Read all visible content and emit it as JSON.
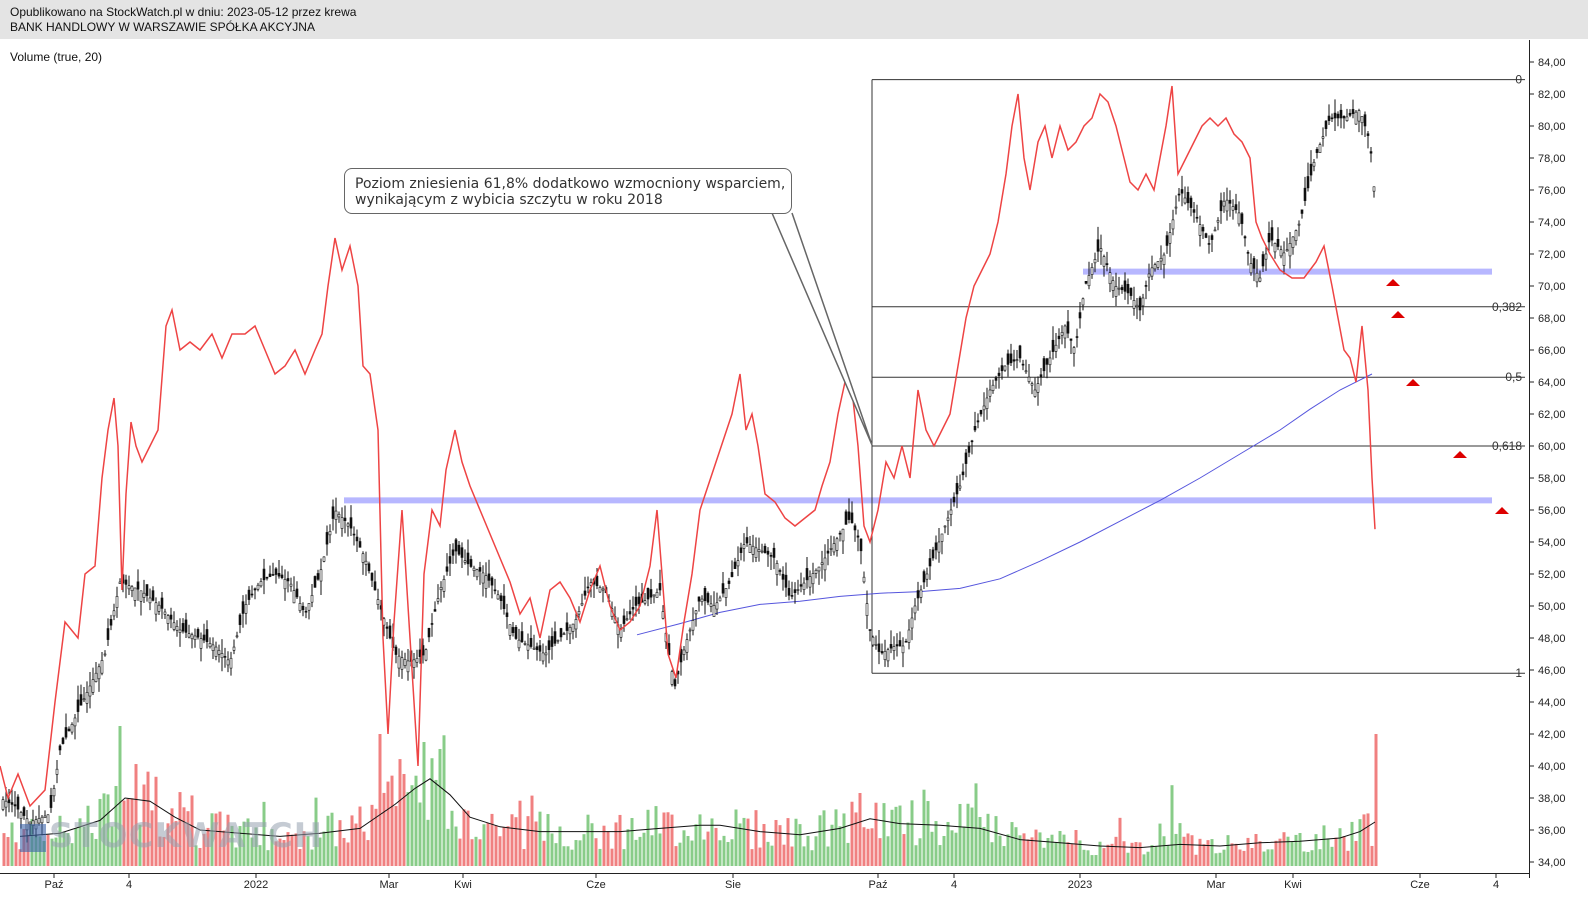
{
  "header": {
    "published": "Opublikowano na StockWatch.pl w dniu: 2023-05-12 przez krewa",
    "company": "BANK HANDLOWY W WARSZAWIE SPÓŁKA AKCYJNA"
  },
  "indicator_label": "Volume (true, 20)",
  "annotation": {
    "line1": "Poziom zniesienia 61,8% dodatkowo wzmocniony wsparciem,",
    "line2": "wynikającym z wybicia szczytu w roku 2018"
  },
  "watermark": "STOCKWATCH",
  "colors": {
    "candles": "#111111",
    "red_line": "#ee4444",
    "ma_line": "#5555dd",
    "support": "#aaaaff",
    "vol_up": "#88cc88",
    "vol_down": "#f08080",
    "arrows": "#dd0000"
  },
  "chart_data": {
    "type": "candlestick",
    "y_axis": {
      "min": 34,
      "max": 84,
      "ticks": [
        "84,00",
        "82,00",
        "80,00",
        "78,00",
        "76,00",
        "74,00",
        "72,00",
        "70,00",
        "68,00",
        "66,00",
        "64,00",
        "62,00",
        "60,00",
        "58,00",
        "56,00",
        "54,00",
        "52,00",
        "50,00",
        "48,00",
        "46,00",
        "44,00",
        "42,00",
        "40,00",
        "38,00",
        "36,00",
        "34,00"
      ]
    },
    "x_axis": {
      "labels": [
        "Paź",
        "4",
        "2022",
        "Mar",
        "Kwi",
        "Cze",
        "Sie",
        "Paź",
        "4",
        "2023",
        "Mar",
        "Kwi",
        "Cze",
        "4"
      ]
    },
    "fibonacci": {
      "high": 82.9,
      "low": 45.8,
      "levels": [
        {
          "label": "0",
          "value": 82.9
        },
        {
          "label": "0,382",
          "value": 68.7
        },
        {
          "label": "0,5",
          "value": 64.3
        },
        {
          "label": "0,618",
          "value": 60.0
        },
        {
          "label": "1",
          "value": 45.8
        }
      ]
    },
    "support_lines": [
      56.6,
      70.9
    ],
    "close_price": [
      [
        0,
        38.0
      ],
      [
        15,
        37.5
      ],
      [
        30,
        36.5
      ],
      [
        50,
        37.0
      ],
      [
        60,
        41.0
      ],
      [
        75,
        43.0
      ],
      [
        90,
        45.0
      ],
      [
        105,
        47.0
      ],
      [
        120,
        51.5
      ],
      [
        140,
        51.0
      ],
      [
        160,
        50.0
      ],
      [
        180,
        48.5
      ],
      [
        200,
        48.0
      ],
      [
        215,
        47.5
      ],
      [
        230,
        46.5
      ],
      [
        245,
        50.0
      ],
      [
        260,
        51.5
      ],
      [
        275,
        52.0
      ],
      [
        290,
        51.5
      ],
      [
        305,
        49.5
      ],
      [
        320,
        52.0
      ],
      [
        335,
        56.0
      ],
      [
        350,
        55.0
      ],
      [
        365,
        53.0
      ],
      [
        380,
        50.0
      ],
      [
        395,
        47.0
      ],
      [
        410,
        46.5
      ],
      [
        425,
        47.0
      ],
      [
        440,
        51.0
      ],
      [
        455,
        53.5
      ],
      [
        470,
        52.5
      ],
      [
        485,
        52.0
      ],
      [
        500,
        50.5
      ],
      [
        515,
        48.0
      ],
      [
        530,
        47.5
      ],
      [
        545,
        47.0
      ],
      [
        560,
        48.0
      ],
      [
        575,
        49.0
      ],
      [
        590,
        51.5
      ],
      [
        605,
        51.0
      ],
      [
        620,
        48.5
      ],
      [
        635,
        50.0
      ],
      [
        650,
        50.5
      ],
      [
        660,
        51.0
      ],
      [
        670,
        46.5
      ],
      [
        675,
        45.0
      ],
      [
        685,
        47.5
      ],
      [
        700,
        50.5
      ],
      [
        715,
        50.0
      ],
      [
        730,
        51.5
      ],
      [
        745,
        54.0
      ],
      [
        760,
        53.5
      ],
      [
        775,
        53.0
      ],
      [
        790,
        50.5
      ],
      [
        805,
        51.5
      ],
      [
        820,
        52.5
      ],
      [
        835,
        54.0
      ],
      [
        850,
        55.5
      ],
      [
        860,
        54.0
      ],
      [
        870,
        48.5
      ],
      [
        880,
        47.0
      ],
      [
        895,
        47.5
      ],
      [
        905,
        47.5
      ],
      [
        915,
        50.0
      ],
      [
        930,
        52.5
      ],
      [
        945,
        55.0
      ],
      [
        960,
        57.5
      ],
      [
        975,
        61.0
      ],
      [
        990,
        63.5
      ],
      [
        1005,
        65.0
      ],
      [
        1020,
        65.5
      ],
      [
        1035,
        63.5
      ],
      [
        1050,
        65.5
      ],
      [
        1065,
        67.5
      ],
      [
        1075,
        66.0
      ],
      [
        1085,
        70.0
      ],
      [
        1100,
        72.5
      ],
      [
        1115,
        70.0
      ],
      [
        1130,
        69.5
      ],
      [
        1140,
        68.5
      ],
      [
        1150,
        71.0
      ],
      [
        1165,
        72.0
      ],
      [
        1180,
        76.0
      ],
      [
        1195,
        74.5
      ],
      [
        1210,
        72.5
      ],
      [
        1225,
        75.5
      ],
      [
        1240,
        74.5
      ],
      [
        1250,
        71.5
      ],
      [
        1260,
        70.5
      ],
      [
        1270,
        73.0
      ],
      [
        1285,
        72.0
      ],
      [
        1300,
        74.0
      ],
      [
        1315,
        78.0
      ],
      [
        1330,
        80.5
      ],
      [
        1345,
        80.5
      ],
      [
        1360,
        81.0
      ],
      [
        1370,
        79.0
      ],
      [
        1375,
        75.5
      ]
    ],
    "moving_average": [
      [
        637,
        48.2
      ],
      [
        680,
        48.9
      ],
      [
        720,
        49.6
      ],
      [
        760,
        50.1
      ],
      [
        800,
        50.3
      ],
      [
        840,
        50.6
      ],
      [
        880,
        50.8
      ],
      [
        920,
        50.9
      ],
      [
        960,
        51.1
      ],
      [
        1000,
        51.7
      ],
      [
        1040,
        52.8
      ],
      [
        1080,
        54.0
      ],
      [
        1120,
        55.3
      ],
      [
        1160,
        56.6
      ],
      [
        1200,
        58.0
      ],
      [
        1240,
        59.5
      ],
      [
        1280,
        61.0
      ],
      [
        1310,
        62.3
      ],
      [
        1340,
        63.5
      ],
      [
        1372,
        64.5
      ]
    ],
    "red_indicator": [
      [
        0,
        40.0
      ],
      [
        8,
        38.0
      ],
      [
        18,
        39.5
      ],
      [
        30,
        37.5
      ],
      [
        45,
        38.5
      ],
      [
        55,
        44.0
      ],
      [
        65,
        49.0
      ],
      [
        78,
        48.0
      ],
      [
        85,
        52.0
      ],
      [
        95,
        52.5
      ],
      [
        102,
        58.0
      ],
      [
        108,
        61.0
      ],
      [
        114,
        63.0
      ],
      [
        118,
        60.0
      ],
      [
        122,
        51.0
      ],
      [
        126,
        57.0
      ],
      [
        131,
        61.5
      ],
      [
        136,
        60.0
      ],
      [
        142,
        59.0
      ],
      [
        150,
        60.0
      ],
      [
        158,
        61.0
      ],
      [
        166,
        67.5
      ],
      [
        172,
        68.5
      ],
      [
        180,
        66.0
      ],
      [
        190,
        66.5
      ],
      [
        200,
        66.0
      ],
      [
        212,
        67.0
      ],
      [
        222,
        65.5
      ],
      [
        232,
        67.0
      ],
      [
        245,
        67.0
      ],
      [
        255,
        67.5
      ],
      [
        265,
        66.0
      ],
      [
        275,
        64.5
      ],
      [
        285,
        65.0
      ],
      [
        295,
        66.0
      ],
      [
        305,
        64.5
      ],
      [
        315,
        66.0
      ],
      [
        322,
        67.0
      ],
      [
        328,
        70.0
      ],
      [
        335,
        73.0
      ],
      [
        342,
        71.0
      ],
      [
        350,
        72.5
      ],
      [
        358,
        70.0
      ],
      [
        363,
        65.0
      ],
      [
        370,
        64.5
      ],
      [
        378,
        61.0
      ],
      [
        383,
        48.0
      ],
      [
        388,
        42.0
      ],
      [
        394,
        49.0
      ],
      [
        402,
        56.0
      ],
      [
        410,
        48.0
      ],
      [
        418,
        40.0
      ],
      [
        424,
        52.0
      ],
      [
        432,
        56.0
      ],
      [
        440,
        55.0
      ],
      [
        446,
        58.5
      ],
      [
        455,
        61.0
      ],
      [
        462,
        59.0
      ],
      [
        470,
        57.5
      ],
      [
        480,
        56.0
      ],
      [
        490,
        54.5
      ],
      [
        500,
        53.0
      ],
      [
        510,
        51.5
      ],
      [
        520,
        49.5
      ],
      [
        530,
        50.5
      ],
      [
        540,
        48.0
      ],
      [
        550,
        51.0
      ],
      [
        560,
        51.5
      ],
      [
        570,
        50.5
      ],
      [
        580,
        49.0
      ],
      [
        590,
        51.0
      ],
      [
        600,
        52.5
      ],
      [
        610,
        50.0
      ],
      [
        620,
        48.5
      ],
      [
        630,
        49.0
      ],
      [
        640,
        50.0
      ],
      [
        650,
        52.5
      ],
      [
        657,
        56.0
      ],
      [
        662,
        52.0
      ],
      [
        668,
        47.0
      ],
      [
        676,
        45.5
      ],
      [
        684,
        49.0
      ],
      [
        692,
        52.0
      ],
      [
        700,
        56.0
      ],
      [
        708,
        57.5
      ],
      [
        716,
        59.0
      ],
      [
        724,
        60.5
      ],
      [
        732,
        62.0
      ],
      [
        740,
        64.5
      ],
      [
        746,
        61.0
      ],
      [
        752,
        62.0
      ],
      [
        758,
        60.0
      ],
      [
        765,
        57.0
      ],
      [
        775,
        56.5
      ],
      [
        785,
        55.5
      ],
      [
        795,
        55.0
      ],
      [
        805,
        55.5
      ],
      [
        815,
        56.0
      ],
      [
        822,
        57.5
      ],
      [
        830,
        59.0
      ],
      [
        838,
        62.0
      ],
      [
        845,
        64.0
      ],
      [
        852,
        63.5
      ],
      [
        858,
        60.0
      ],
      [
        864,
        55.0
      ],
      [
        870,
        54.0
      ],
      [
        878,
        56.0
      ],
      [
        886,
        59.0
      ],
      [
        894,
        58.0
      ],
      [
        902,
        60.0
      ],
      [
        910,
        58.0
      ],
      [
        918,
        63.5
      ],
      [
        926,
        61.0
      ],
      [
        934,
        60.0
      ],
      [
        942,
        61.0
      ],
      [
        950,
        62.0
      ],
      [
        958,
        65.0
      ],
      [
        966,
        68.0
      ],
      [
        974,
        70.0
      ],
      [
        982,
        71.0
      ],
      [
        990,
        72.0
      ],
      [
        998,
        74.0
      ],
      [
        1006,
        77.0
      ],
      [
        1012,
        80.0
      ],
      [
        1018,
        82.0
      ],
      [
        1024,
        78.0
      ],
      [
        1030,
        76.0
      ],
      [
        1038,
        79.0
      ],
      [
        1045,
        80.0
      ],
      [
        1052,
        78.0
      ],
      [
        1060,
        80.0
      ],
      [
        1068,
        78.5
      ],
      [
        1076,
        79.0
      ],
      [
        1084,
        80.0
      ],
      [
        1092,
        80.5
      ],
      [
        1100,
        82.0
      ],
      [
        1108,
        81.5
      ],
      [
        1116,
        80.0
      ],
      [
        1124,
        78.0
      ],
      [
        1130,
        76.5
      ],
      [
        1138,
        76.0
      ],
      [
        1146,
        77.0
      ],
      [
        1154,
        76.0
      ],
      [
        1160,
        78.0
      ],
      [
        1166,
        80.0
      ],
      [
        1172,
        82.5
      ],
      [
        1178,
        77.0
      ],
      [
        1186,
        78.0
      ],
      [
        1194,
        79.0
      ],
      [
        1202,
        80.0
      ],
      [
        1210,
        80.5
      ],
      [
        1218,
        80.0
      ],
      [
        1226,
        80.5
      ],
      [
        1234,
        79.5
      ],
      [
        1242,
        79.0
      ],
      [
        1250,
        78.0
      ],
      [
        1256,
        74.0
      ],
      [
        1262,
        73.0
      ],
      [
        1270,
        72.0
      ],
      [
        1280,
        71.0
      ],
      [
        1292,
        70.5
      ],
      [
        1304,
        70.5
      ],
      [
        1316,
        71.5
      ],
      [
        1324,
        72.5
      ],
      [
        1332,
        70.0
      ],
      [
        1338,
        68.0
      ],
      [
        1344,
        66.0
      ],
      [
        1350,
        65.5
      ],
      [
        1356,
        64.0
      ],
      [
        1362,
        67.5
      ],
      [
        1368,
        63.5
      ],
      [
        1372,
        58.0
      ],
      [
        1375,
        54.8
      ]
    ],
    "volume_ma": [
      [
        20,
        35.6
      ],
      [
        60,
        35.8
      ],
      [
        100,
        36.6
      ],
      [
        125,
        38.0
      ],
      [
        150,
        37.8
      ],
      [
        175,
        36.8
      ],
      [
        200,
        36.0
      ],
      [
        240,
        35.8
      ],
      [
        280,
        35.6
      ],
      [
        320,
        35.8
      ],
      [
        360,
        36.1
      ],
      [
        395,
        37.6
      ],
      [
        415,
        38.6
      ],
      [
        430,
        39.2
      ],
      [
        450,
        38.2
      ],
      [
        470,
        36.8
      ],
      [
        500,
        36.2
      ],
      [
        540,
        35.9
      ],
      [
        580,
        35.9
      ],
      [
        620,
        35.9
      ],
      [
        660,
        36.1
      ],
      [
        700,
        36.3
      ],
      [
        720,
        36.3
      ],
      [
        760,
        35.9
      ],
      [
        800,
        35.7
      ],
      [
        840,
        36.1
      ],
      [
        870,
        36.7
      ],
      [
        900,
        36.4
      ],
      [
        940,
        36.3
      ],
      [
        980,
        36.1
      ],
      [
        1020,
        35.4
      ],
      [
        1060,
        35.2
      ],
      [
        1100,
        35.0
      ],
      [
        1140,
        34.9
      ],
      [
        1180,
        35.1
      ],
      [
        1220,
        35.0
      ],
      [
        1260,
        35.2
      ],
      [
        1300,
        35.3
      ],
      [
        1340,
        35.5
      ],
      [
        1360,
        35.9
      ],
      [
        1375,
        36.5
      ]
    ],
    "volume_peaks": [
      [
        120,
        42.5
      ],
      [
        130,
        41.0
      ],
      [
        380,
        42.0
      ],
      [
        403,
        39.5
      ],
      [
        424,
        41.5
      ],
      [
        750,
        41.8
      ],
      [
        862,
        42.3
      ],
      [
        922,
        43.3
      ],
      [
        1172,
        38.8
      ],
      [
        1375,
        42.0
      ]
    ]
  }
}
